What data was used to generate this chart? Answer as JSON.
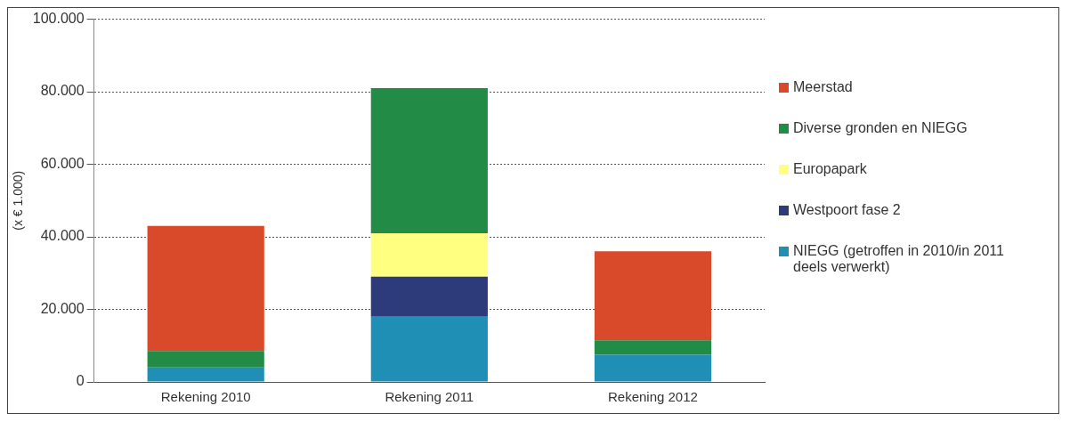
{
  "chart_data": {
    "type": "bar",
    "stacked": true,
    "ylabel": "(x € 1.000)",
    "categories": [
      "Rekening 2010",
      "Rekening 2011",
      "Rekening 2012"
    ],
    "series": [
      {
        "name": "NIEGG (getroffen in 2010/in 2011 deels verwerkt)",
        "color": "#1f8fb5",
        "values": [
          4000,
          18000,
          7500
        ]
      },
      {
        "name": "Westpoort fase 2",
        "color": "#2e3b7a",
        "values": [
          0,
          11000,
          0
        ]
      },
      {
        "name": "Europapark",
        "color": "#ffff80",
        "values": [
          0,
          12000,
          0
        ]
      },
      {
        "name": "Diverse gronden en NIEGG",
        "color": "#228b45",
        "values": [
          4500,
          40000,
          4000
        ]
      },
      {
        "name": "Meerstad",
        "color": "#d84a2a",
        "values": [
          34500,
          0,
          24500
        ]
      }
    ],
    "ylim": [
      0,
      100000
    ],
    "yticks": [
      {
        "value": 0,
        "label": "0"
      },
      {
        "value": 20000,
        "label": "20.000"
      },
      {
        "value": 40000,
        "label": "40.000"
      },
      {
        "value": 60000,
        "label": "60.000"
      },
      {
        "value": 80000,
        "label": "80.000"
      },
      {
        "value": 100000,
        "label": "100.000"
      }
    ],
    "grid": "y",
    "legend": "right"
  }
}
